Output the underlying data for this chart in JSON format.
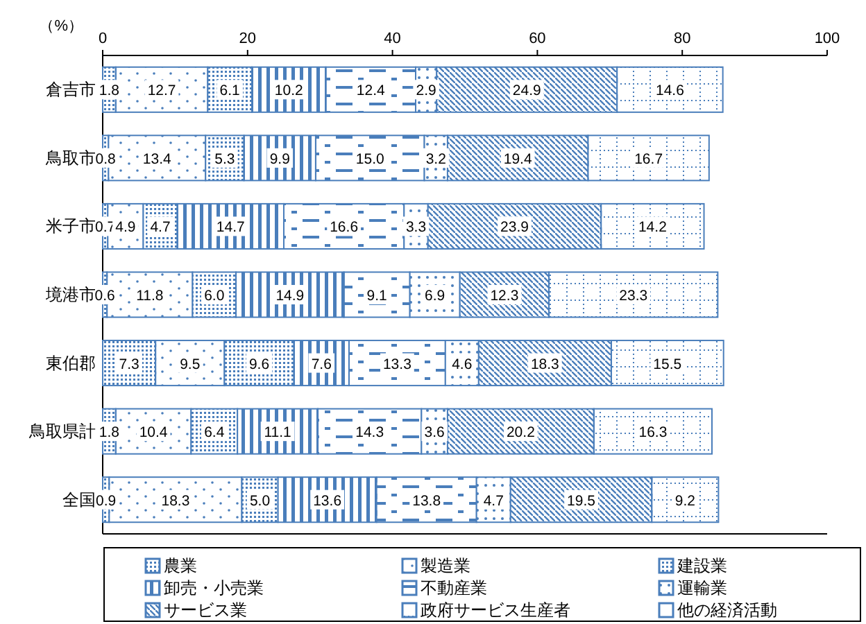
{
  "chart_data": {
    "type": "bar",
    "orientation": "horizontal",
    "stacked": true,
    "xlabel": "（%）",
    "xlim": [
      0,
      100
    ],
    "xticks": [
      0,
      20,
      40,
      60,
      80,
      100
    ],
    "grid": false,
    "legend": "bottom",
    "categories": [
      "倉吉市",
      "鳥取市",
      "米子市",
      "境港市",
      "東伯郡",
      "鳥取県計",
      "全国"
    ],
    "series": [
      {
        "name": "農業",
        "color": "#4a7ebb",
        "values": [
          1.8,
          0.8,
          0.7,
          0.6,
          7.3,
          1.8,
          0.9
        ],
        "value_labels": [
          "1.8",
          "0.8",
          "0.7",
          "0.6",
          "7.3",
          "1.8",
          "0.9"
        ]
      },
      {
        "name": "製造業",
        "color": "#4a7ebb",
        "values": [
          12.7,
          13.4,
          4.9,
          11.8,
          9.5,
          10.4,
          18.3
        ],
        "value_labels": [
          "12.7",
          "13.4",
          "4.9",
          "11.8",
          "9.5",
          "10.4",
          "18.3"
        ]
      },
      {
        "name": "建設業",
        "color": "#4a7ebb",
        "values": [
          6.1,
          5.3,
          4.7,
          6.0,
          9.6,
          6.4,
          5.0
        ],
        "value_labels": [
          "6.1",
          "5.3",
          "4.7",
          "6.0",
          "9.6",
          "6.4",
          "5.0"
        ]
      },
      {
        "name": "卸売・小売業",
        "color": "#4a7ebb",
        "values": [
          10.2,
          9.9,
          14.7,
          14.9,
          7.6,
          11.1,
          13.6
        ],
        "value_labels": [
          "10.2",
          "9.9",
          "14.7",
          "14.9",
          "7.6",
          "11.1",
          "13.6"
        ]
      },
      {
        "name": "不動産業",
        "color": "#4a7ebb",
        "values": [
          12.4,
          15.0,
          16.6,
          9.1,
          13.3,
          14.3,
          13.8
        ],
        "value_labels": [
          "12.4",
          "15.0",
          "16.6",
          "9.1",
          "13.3",
          "14.3",
          "13.8"
        ]
      },
      {
        "name": "運輸業",
        "color": "#4a7ebb",
        "values": [
          2.9,
          3.2,
          3.3,
          6.9,
          4.6,
          3.6,
          4.7
        ],
        "value_labels": [
          "2.9",
          "3.2",
          "3.3",
          "6.9",
          "4.6",
          "3.6",
          "4.7"
        ]
      },
      {
        "name": "サービス業",
        "color": "#4a7ebb",
        "values": [
          24.9,
          19.4,
          23.9,
          12.3,
          18.3,
          20.2,
          19.5
        ],
        "value_labels": [
          "24.9",
          "19.4",
          "23.9",
          "12.3",
          "18.3",
          "20.2",
          "19.5"
        ]
      },
      {
        "name": "政府サービス生産者",
        "color": "#4a7ebb",
        "values": [
          14.6,
          16.7,
          14.2,
          23.3,
          15.5,
          16.3,
          9.2
        ],
        "value_labels": [
          "14.6",
          "16.7",
          "14.2",
          "23.3",
          "15.5",
          "16.3",
          "9.2"
        ]
      },
      {
        "name": "他の経済活動",
        "color": "#4a7ebb",
        "values": [
          null,
          null,
          null,
          null,
          null,
          null,
          null
        ]
      }
    ]
  }
}
